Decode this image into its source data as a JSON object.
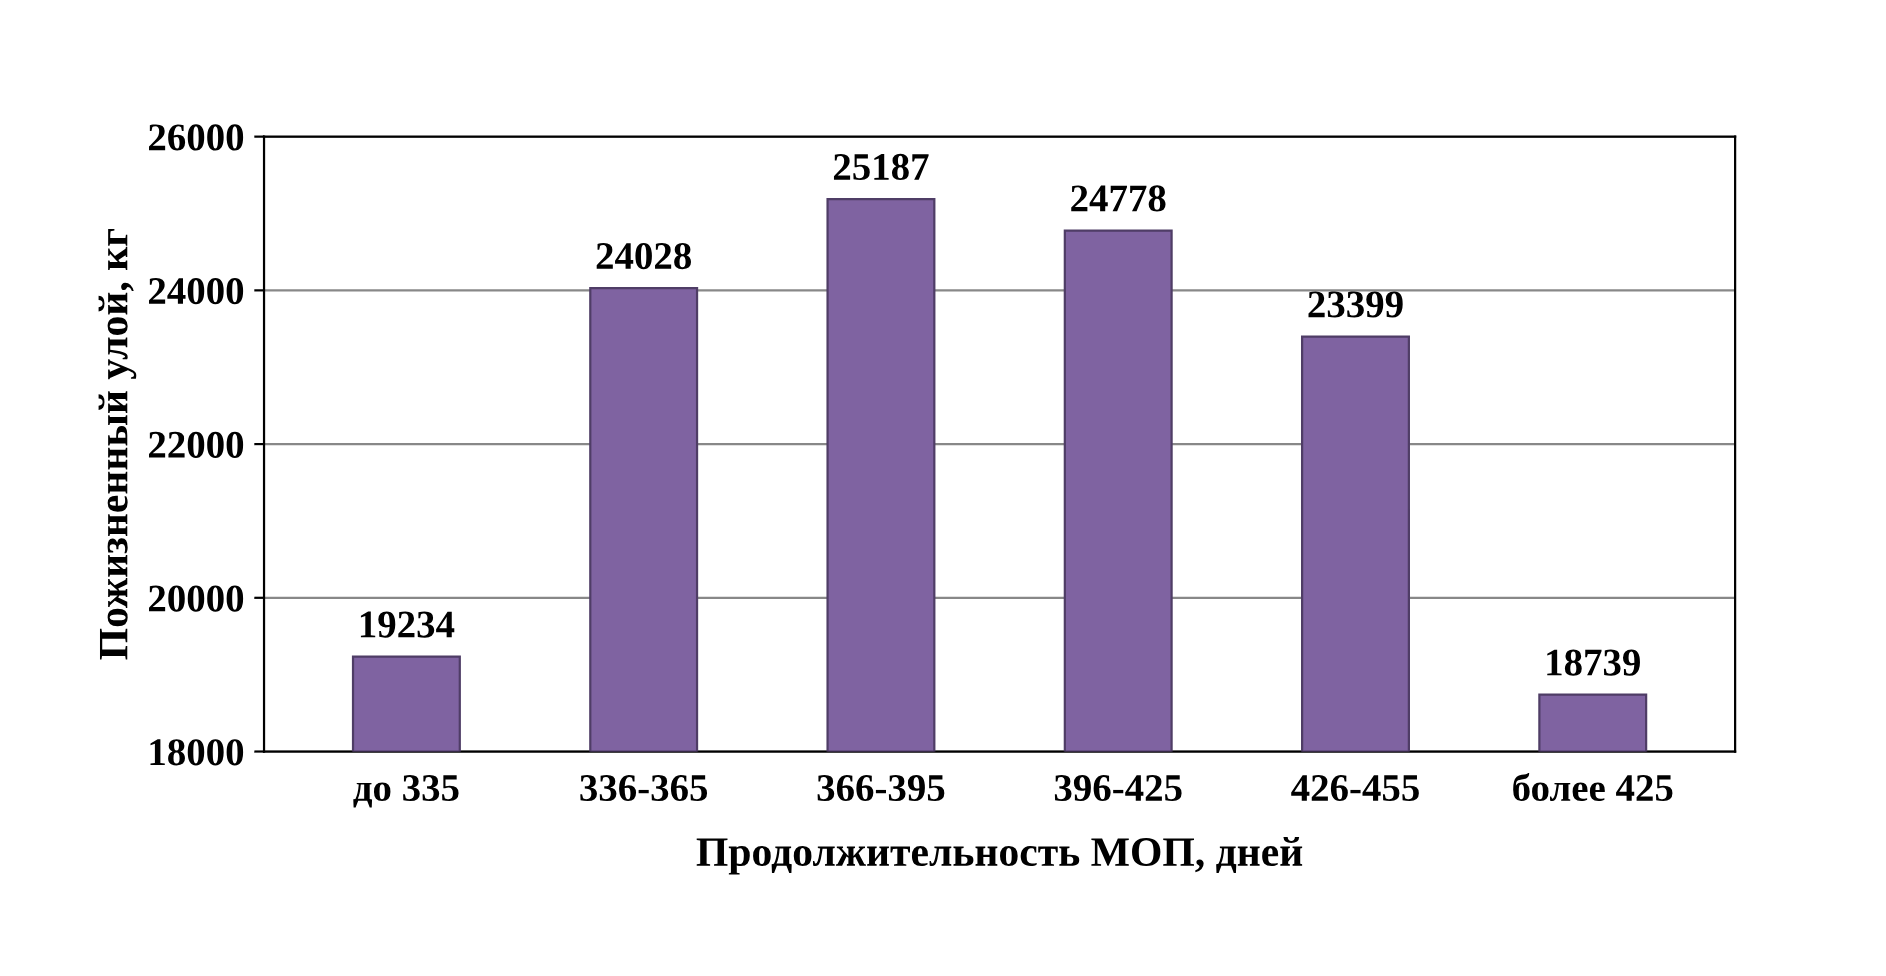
{
  "chart_data": {
    "type": "bar",
    "xlabel": "Продолжительность МОП, дней",
    "ylabel": "Пожизненный улой, кг",
    "categories": [
      "до 335",
      "336-365",
      "366-395",
      "396-425",
      "426-455",
      "более 425"
    ],
    "values": [
      19234,
      24028,
      25187,
      24778,
      23399,
      18739
    ],
    "color": "#7f63a1",
    "ylim": [
      18000,
      26000
    ],
    "yticks": [
      18000,
      20000,
      22000,
      24000,
      26000
    ],
    "grid": "y",
    "data_labels": true
  }
}
